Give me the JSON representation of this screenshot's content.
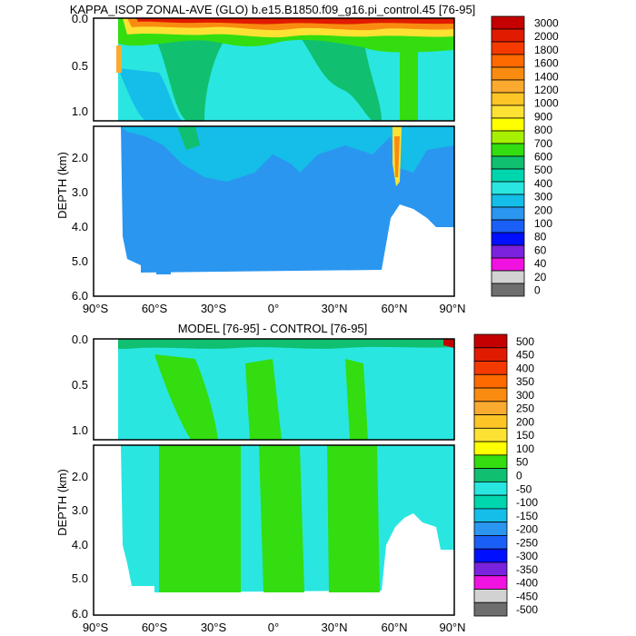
{
  "chart_data": [
    {
      "type": "heatmap",
      "title": "KAPPA_ISOP ZONAL-AVE (GLO) b.e15.B1850.f09_g16.pi_control.45 [76-95]",
      "ylabel": "DEPTH (km)",
      "xlabel": "",
      "x_ticks": [
        "90°S",
        "60°S",
        "30°S",
        "0°",
        "30°N",
        "60°N",
        "90°N"
      ],
      "y_ticks_upper": [
        "0.0",
        "0.5",
        "1.0"
      ],
      "y_ticks_lower": [
        "2.0",
        "3.0",
        "4.0",
        "5.0",
        "6.0"
      ],
      "xlim": [
        -90,
        90
      ],
      "ylim": [
        6.0,
        0.0
      ],
      "colorbar_labels": [
        "3000",
        "2000",
        "1800",
        "1600",
        "1400",
        "1200",
        "1000",
        "900",
        "800",
        "700",
        "600",
        "500",
        "400",
        "300",
        "200",
        "100",
        "80",
        "60",
        "40",
        "20",
        "0"
      ],
      "colorbar_colors": [
        "#c40000",
        "#e11b00",
        "#f53a00",
        "#ff6a00",
        "#f98c10",
        "#fbaa30",
        "#fdc626",
        "#fde234",
        "#ffff00",
        "#a7f000",
        "#33dd10",
        "#10c070",
        "#00d6ae",
        "#2ae6e0",
        "#14bee8",
        "#2a96f0",
        "#1a60f6",
        "#0010ff",
        "#7a22de",
        "#f012e0",
        "#d2d2d2",
        "#6e6e6e"
      ]
    },
    {
      "type": "heatmap",
      "title": "MODEL [76-95] - CONTROL [76-95]",
      "ylabel": "DEPTH (km)",
      "xlabel": "",
      "x_ticks": [
        "90°S",
        "60°S",
        "30°S",
        "0°",
        "30°N",
        "60°N",
        "90°N"
      ],
      "y_ticks_upper": [
        "0.0",
        "0.5",
        "1.0"
      ],
      "y_ticks_lower": [
        "2.0",
        "3.0",
        "4.0",
        "5.0",
        "6.0"
      ],
      "xlim": [
        -90,
        90
      ],
      "ylim": [
        6.0,
        0.0
      ],
      "colorbar_labels": [
        "500",
        "450",
        "400",
        "350",
        "300",
        "250",
        "200",
        "150",
        "100",
        "50",
        "0",
        "-50",
        "-100",
        "-150",
        "-200",
        "-250",
        "-300",
        "-350",
        "-400",
        "-450",
        "-500"
      ],
      "colorbar_colors": [
        "#c40000",
        "#e11b00",
        "#f53a00",
        "#ff6a00",
        "#f98c10",
        "#fbaa30",
        "#fdc626",
        "#fde234",
        "#ffff00",
        "#33dd10",
        "#10c070",
        "#2ae6e0",
        "#00d6ae",
        "#14bee8",
        "#2a96f0",
        "#1a60f6",
        "#0010ff",
        "#7a22de",
        "#f012e0",
        "#d2d2d2",
        "#6e6e6e"
      ]
    }
  ]
}
